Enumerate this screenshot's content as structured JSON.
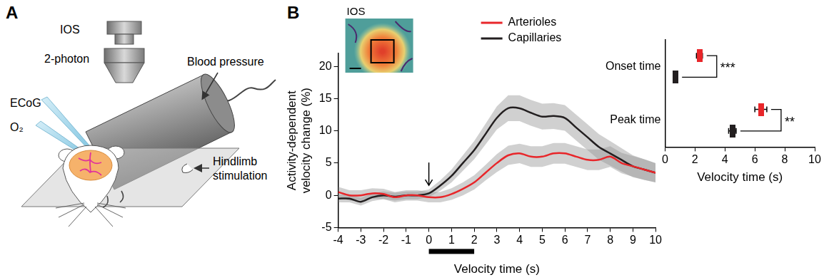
{
  "diagram": {
    "panel": "A",
    "labels": {
      "ios": "IOS",
      "two_photon": "2-photon",
      "ecog": "ECoG",
      "o2": "O₂",
      "blood_pressure": "Blood pressure",
      "hindlimb": "Hindlimb stimulation"
    }
  },
  "chart_data": [
    {
      "panel": "B",
      "type": "line",
      "inset_label": "IOS",
      "x_label": "Velocity time (s)",
      "y_label": "Activity-dependent velocity change (%)",
      "x": [
        -4,
        -3.5,
        -3,
        -2.5,
        -2,
        -1.5,
        -1,
        -0.5,
        0,
        0.5,
        1,
        1.5,
        2,
        2.5,
        3,
        3.5,
        4,
        4.5,
        5,
        5.5,
        6,
        6.5,
        7,
        7.5,
        8,
        8.5,
        9,
        9.5,
        10
      ],
      "series": [
        {
          "name": "Arterioles",
          "color": "#e8262a",
          "values": [
            0.5,
            0,
            0,
            0.3,
            0.2,
            -0.3,
            0,
            0,
            -0.3,
            -0.3,
            0.2,
            1,
            2,
            3.5,
            5,
            6.2,
            6.5,
            6,
            6,
            6.5,
            6.5,
            6,
            5.5,
            5.5,
            6,
            5,
            4.5,
            4,
            3.5
          ],
          "errors": [
            0.8,
            0.8,
            0.8,
            0.8,
            0.8,
            0.8,
            0.8,
            0.8,
            0.8,
            0.8,
            0.9,
            1,
            1.1,
            1.2,
            1.4,
            1.5,
            1.5,
            1.6,
            1.6,
            1.6,
            1.6,
            1.6,
            1.6,
            1.6,
            1.6,
            1.6,
            1.6,
            1.6,
            1.5
          ]
        },
        {
          "name": "Capillaries",
          "color": "#231f20",
          "values": [
            -0.5,
            -0.5,
            -1,
            -0.3,
            0,
            -0.2,
            0,
            0,
            0.3,
            1.5,
            3,
            5,
            7,
            9.5,
            12,
            13.5,
            13.5,
            12.8,
            12.2,
            12.3,
            12,
            10.5,
            9,
            7.5,
            6.5,
            5.5,
            4.5,
            4,
            3.5
          ],
          "errors": [
            0.6,
            0.6,
            0.6,
            0.6,
            0.6,
            0.6,
            0.6,
            0.6,
            0.6,
            0.8,
            1,
            1.2,
            1.4,
            1.6,
            1.8,
            2,
            2,
            2,
            2,
            2,
            2,
            2,
            2,
            2,
            1.9,
            1.8,
            1.7,
            1.6,
            1.5
          ]
        }
      ],
      "xlim": [
        -4,
        10
      ],
      "xticks": [
        -4,
        -3,
        -2,
        -1,
        0,
        1,
        2,
        3,
        4,
        5,
        6,
        7,
        8,
        9,
        10
      ],
      "ylim": [
        -5,
        22
      ],
      "yticks": [
        -5,
        0,
        5,
        10,
        15,
        20
      ],
      "stimulation": [
        0,
        2
      ],
      "arrow_x": 0,
      "legend": "top",
      "grid": false
    },
    {
      "type": "dot",
      "orientation": "horizontal",
      "marker": "rect",
      "categories": [
        "Onset time",
        "Peak time"
      ],
      "series": [
        {
          "name": "Arterioles",
          "color": "#e8262a",
          "values": [
            2.3,
            6.4
          ],
          "errors": [
            0.2,
            0.4
          ]
        },
        {
          "name": "Capillaries",
          "color": "#231f20",
          "values": [
            0.7,
            4.5
          ],
          "errors": [
            0.15,
            0.25
          ]
        }
      ],
      "significance": [
        "***",
        "**"
      ],
      "x_label": "Velocity time (s)",
      "xlim": [
        0,
        10
      ],
      "xticks": [
        0,
        2,
        4,
        6,
        8,
        10
      ],
      "grid": false
    }
  ]
}
